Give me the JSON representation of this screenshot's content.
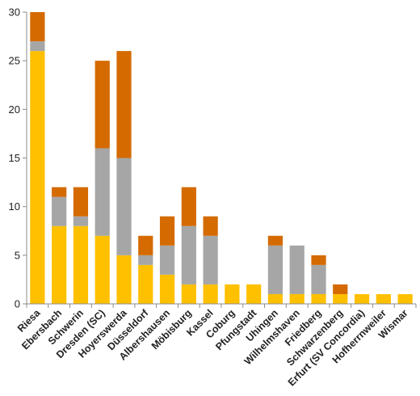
{
  "chart_data": {
    "type": "bar",
    "stacked": true,
    "categories": [
      "Riesa",
      "Ebersbach",
      "Schwerin",
      "Dresden (SC)",
      "Hoyerswerda",
      "Düsseldorf",
      "Albershausen",
      "Möbisburg",
      "Kassel",
      "Coburg",
      "Pfungstadt",
      "Uhingen",
      "Wilhelmshaven",
      "Friedberg",
      "Schwarzenberg",
      "Erfurt (SV Concordia)",
      "Hofherrnweiler",
      "Wismar"
    ],
    "series": [
      {
        "color": "#ffc000",
        "values": [
          26,
          8,
          8,
          7,
          5,
          4,
          3,
          2,
          2,
          2,
          2,
          1,
          1,
          1,
          1,
          1,
          1,
          1
        ]
      },
      {
        "color": "#a6a6a6",
        "values": [
          1,
          3,
          1,
          9,
          10,
          1,
          3,
          6,
          5,
          0,
          0,
          5,
          5,
          3,
          0,
          0,
          0,
          0
        ]
      },
      {
        "color": "#d46a00",
        "values": [
          3,
          1,
          3,
          9,
          11,
          2,
          3,
          4,
          2,
          0,
          0,
          1,
          0,
          1,
          1,
          0,
          0,
          0
        ]
      }
    ],
    "ylim": [
      0,
      30
    ],
    "yticks": [
      0,
      5,
      10,
      15,
      20,
      25,
      30
    ],
    "grid": false,
    "legend": "none"
  }
}
